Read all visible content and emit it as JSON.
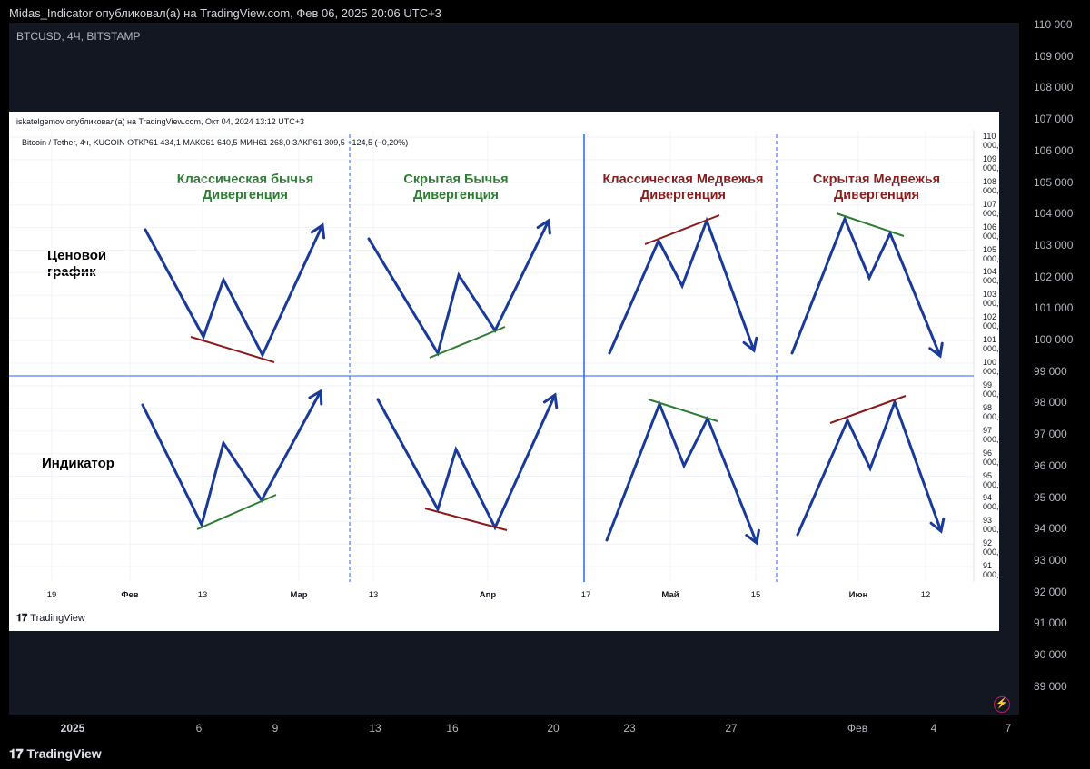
{
  "header": {
    "published": "Midas_Indicator опубликовал(а) на TradingView.com, Фев 06, 2025 20:06 UTC+3",
    "symbol": "BTCUSD, 4Ч, BITSTAMP",
    "logo": "TradingView"
  },
  "outer_axis": {
    "price_labels": [
      "110 000",
      "109 000",
      "108 000",
      "107 000",
      "106 000",
      "105 000",
      "104 000",
      "103 000",
      "102 000",
      "101 000",
      "100 000",
      "99 000",
      "98 000",
      "97 000",
      "96 000",
      "95 000",
      "94 000",
      "93 000",
      "92 000",
      "91 000",
      "90 000",
      "89 000"
    ],
    "date_labels": [
      {
        "text": "2025",
        "bold": true
      },
      {
        "text": "6",
        "bold": false
      },
      {
        "text": "9",
        "bold": false
      },
      {
        "text": "13",
        "bold": false
      },
      {
        "text": "16",
        "bold": false
      },
      {
        "text": "20",
        "bold": false
      },
      {
        "text": "23",
        "bold": false
      },
      {
        "text": "27",
        "bold": false
      },
      {
        "text": "Фев",
        "bold": false
      },
      {
        "text": "4",
        "bold": false
      },
      {
        "text": "7",
        "bold": false
      }
    ]
  },
  "inner": {
    "published": "iskatelgemov опубликовал(а) на TradingView.com, Окт 04, 2024 13:12 UTC+3",
    "symbol": "Bitcoin / Tether, 4ч, KUCOIN  ОТКР61 434,1  МАКС61 640,5  МИН61 268,0  ЗАКР61 309,5  −124,5 (−0,20%)",
    "price_labels": [
      "110 000,0",
      "109 000,0",
      "108 000,0",
      "107 000,0",
      "106 000,0",
      "105 000,0",
      "104 000,0",
      "103 000,0",
      "102 000,0",
      "101 000,0",
      "100 000,0",
      "99 000,0",
      "98 000,0",
      "97 000,0",
      "96 000,0",
      "95 000,0",
      "94 000,0",
      "93 000,0",
      "92 000,0",
      "91 000,0"
    ],
    "date_labels": [
      {
        "text": "19",
        "bold": false
      },
      {
        "text": "Фев",
        "bold": true
      },
      {
        "text": "13",
        "bold": false
      },
      {
        "text": "Мар",
        "bold": true
      },
      {
        "text": "13",
        "bold": false
      },
      {
        "text": "Апр",
        "bold": true
      },
      {
        "text": "17",
        "bold": false
      },
      {
        "text": "Май",
        "bold": true
      },
      {
        "text": "15",
        "bold": false
      },
      {
        "text": "Июн",
        "bold": true
      },
      {
        "text": "12",
        "bold": false
      }
    ],
    "logo": "TradingView",
    "row_labels": {
      "price": "Ценовой\nграфик",
      "indicator": "Индикатор"
    },
    "panels": [
      {
        "title": "Классическая бычья\nДивергенция",
        "color": "#2e7d32"
      },
      {
        "title": "Скрытая Бычья\nДивергенция",
        "color": "#2e7d32"
      },
      {
        "title": "Классическая Медвежья\nДивергенция",
        "color": "#8b1a1a"
      },
      {
        "title": "Скрытая Медвежья\nДивергенция",
        "color": "#8b1a1a"
      }
    ]
  },
  "colors": {
    "line": "#1a3a9a",
    "green": "#2e7d32",
    "red": "#8b1a1a",
    "sep": "#2962ff"
  },
  "chart_data": {
    "type": "line",
    "title": "",
    "xlabel": "",
    "ylabel": "",
    "ylim": [
      91000,
      110000
    ],
    "x_ticks": [
      "19",
      "Фев",
      "13",
      "Мар",
      "13",
      "Апр",
      "17",
      "Май",
      "15",
      "Июн",
      "12"
    ],
    "series": []
  }
}
